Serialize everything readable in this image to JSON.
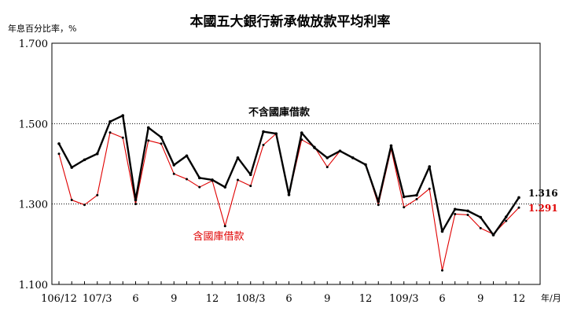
{
  "chart_data": {
    "type": "line",
    "title": "本國五大銀行新承做放款平均利率",
    "ylabel": "年息百分比率，%",
    "xunit": "年/月",
    "ylim": [
      1.1,
      1.7
    ],
    "yticks": [
      "1.100",
      "1.300",
      "1.500",
      "1.700"
    ],
    "ytick_values": [
      1.1,
      1.3,
      1.5,
      1.7
    ],
    "grid": "horizontal dotted at 1.300 and 1.500",
    "x": [
      "106/12",
      "107/1",
      "107/2",
      "107/3",
      "107/4",
      "107/5",
      "107/6",
      "107/7",
      "107/8",
      "107/9",
      "107/10",
      "107/11",
      "107/12",
      "108/1",
      "108/2",
      "108/3",
      "108/4",
      "108/5",
      "108/6",
      "108/7",
      "108/8",
      "108/9",
      "108/10",
      "108/11",
      "108/12",
      "109/1",
      "109/2",
      "109/3",
      "109/4",
      "109/5",
      "109/6",
      "109/7",
      "109/8",
      "109/9",
      "109/10",
      "109/11",
      "109/12"
    ],
    "xtick_labels": [
      {
        "index": 0,
        "label": "106/12"
      },
      {
        "index": 3,
        "label": "107/3"
      },
      {
        "index": 6,
        "label": "6"
      },
      {
        "index": 9,
        "label": "9"
      },
      {
        "index": 12,
        "label": "12"
      },
      {
        "index": 15,
        "label": "108/3"
      },
      {
        "index": 18,
        "label": "6"
      },
      {
        "index": 21,
        "label": "9"
      },
      {
        "index": 24,
        "label": "12"
      },
      {
        "index": 27,
        "label": "109/3"
      },
      {
        "index": 30,
        "label": "6"
      },
      {
        "index": 33,
        "label": "9"
      },
      {
        "index": 36,
        "label": "12"
      }
    ],
    "series": [
      {
        "name": "不含國庫借款",
        "color": "#000000",
        "values": [
          1.45,
          1.391,
          1.41,
          1.425,
          1.505,
          1.52,
          1.31,
          1.49,
          1.466,
          1.397,
          1.42,
          1.365,
          1.36,
          1.342,
          1.415,
          1.373,
          1.48,
          1.475,
          1.323,
          1.477,
          1.44,
          1.415,
          1.432,
          1.415,
          1.398,
          1.306,
          1.445,
          1.318,
          1.322,
          1.393,
          1.232,
          1.287,
          1.283,
          1.267,
          1.223,
          1.268,
          1.316
        ]
      },
      {
        "name": "含國庫借款",
        "color": "#e00000",
        "values": [
          1.425,
          1.31,
          1.298,
          1.322,
          1.478,
          1.465,
          1.3,
          1.458,
          1.45,
          1.375,
          1.362,
          1.342,
          1.358,
          1.245,
          1.36,
          1.345,
          1.447,
          1.475,
          1.323,
          1.46,
          1.442,
          1.392,
          1.432,
          1.415,
          1.398,
          1.298,
          1.437,
          1.292,
          1.312,
          1.338,
          1.135,
          1.275,
          1.273,
          1.24,
          1.225,
          1.258,
          1.291
        ]
      }
    ],
    "end_labels": {
      "black": "1.316",
      "red": "1.291"
    }
  },
  "colors": {
    "black_series": "#000000",
    "red_series": "#e00000",
    "grid": "#000000"
  }
}
